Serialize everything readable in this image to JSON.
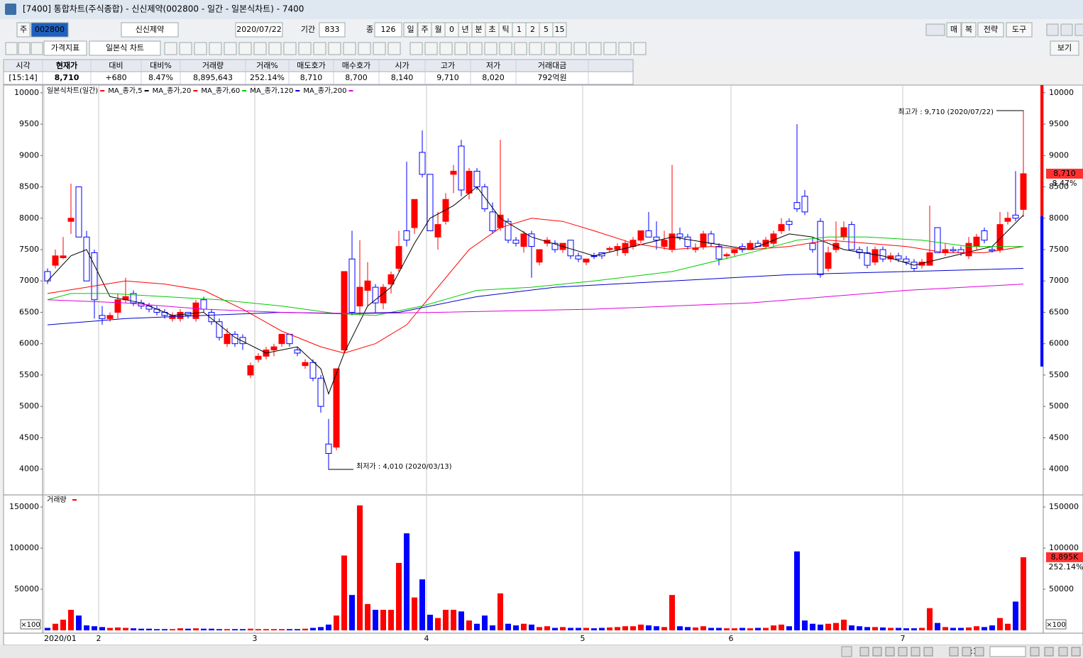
{
  "window": {
    "title": "[7400] 통합차트(주식종합) - 신신제약(002800 - 일간 - 일본식차트) - 7400"
  },
  "toolbar": {
    "row1": [
      "주",
      "002800",
      "신신제약",
      "2020/07/22",
      "기간",
      "833",
      "종",
      "126",
      "일",
      "주",
      "월",
      "0",
      "년",
      "분",
      "초",
      "틱",
      "1",
      "2",
      "5",
      "15"
    ],
    "row1_right": [
      "매",
      "복",
      "전략",
      "도구"
    ],
    "row2": [
      "가격지표",
      "일본식 차트"
    ],
    "row2_right": [
      "보기"
    ]
  },
  "quote": {
    "headers": [
      "시각",
      "현재가",
      "대비",
      "대비%",
      "거래량",
      "거래%",
      "매도호가",
      "매수호가",
      "시가",
      "고가",
      "저가",
      "거래대금"
    ],
    "values": [
      "[15:14]",
      "8,710",
      "+680",
      "8.47%",
      "8,895,643",
      "252.14%",
      "8,710",
      "8,700",
      "8,140",
      "9,710",
      "8,020",
      "792억원"
    ]
  },
  "chart_data": [
    {
      "type": "candlestick",
      "title": "일본식차트(일간)",
      "up_color": "#ff0000",
      "down_color": "#0000ff",
      "xticks": [
        {
          "value": 0,
          "label": "2020/01"
        },
        {
          "value": 7,
          "label": "2"
        },
        {
          "value": 27,
          "label": "3"
        },
        {
          "value": 49,
          "label": "4"
        },
        {
          "value": 69,
          "label": "5"
        },
        {
          "value": 88,
          "label": "6"
        },
        {
          "value": 110,
          "label": "7"
        }
      ],
      "ylim": [
        3600,
        10100
      ],
      "yticks": [
        4000,
        4500,
        5000,
        5500,
        6000,
        6500,
        7000,
        7500,
        8000,
        8500,
        9000,
        9500,
        10000
      ],
      "grid": true,
      "open": [
        7150,
        7250,
        7370,
        7950,
        8500,
        7700,
        7450,
        6450,
        6400,
        6500,
        6700,
        6800,
        6650,
        6600,
        6550,
        6500,
        6400,
        6400,
        6500,
        6400,
        6700,
        6500,
        6350,
        6000,
        6150,
        6100,
        5500,
        5750,
        5800,
        5900,
        6000,
        6150,
        5900,
        5650,
        5700,
        5450,
        4400,
        4350,
        5900,
        7350,
        6600,
        6850,
        6900,
        6650,
        6950,
        7200,
        7800,
        7850,
        9050,
        8700,
        7700,
        7950,
        8700,
        9150,
        8400,
        8750,
        8500,
        8100,
        7850,
        7950,
        7650,
        7550,
        7750,
        7300,
        7600,
        7600,
        7500,
        7650,
        7400,
        7300,
        7400,
        7450,
        7500,
        7500,
        7450,
        7550,
        7650,
        7800,
        7700,
        7550,
        7500,
        7750,
        7700,
        7500,
        7550,
        7750,
        7550,
        7400,
        7450,
        7550,
        7500,
        7600,
        7550,
        7600,
        7800,
        7950,
        8250,
        8350,
        7600,
        7950,
        7200,
        7500,
        7700,
        7900,
        7500,
        7450,
        7300,
        7500,
        7350,
        7400,
        7350,
        7300,
        7250,
        7250,
        7850,
        7450,
        7500,
        7500,
        7400,
        7550,
        7800,
        7500,
        7500,
        7950,
        8050,
        8140
      ],
      "high": [
        7200,
        7500,
        7700,
        8550,
        8500,
        7800,
        7500,
        6600,
        6500,
        6800,
        7050,
        6850,
        6700,
        6650,
        6600,
        6550,
        6500,
        6550,
        6500,
        6700,
        6750,
        6550,
        6400,
        6250,
        6200,
        6150,
        5700,
        5850,
        5950,
        6000,
        6150,
        6150,
        5950,
        5750,
        5750,
        5500,
        4800,
        5600,
        7150,
        7800,
        7650,
        7300,
        6950,
        6950,
        7150,
        7800,
        8900,
        8300,
        9400,
        8700,
        8100,
        8400,
        8850,
        9250,
        8800,
        8800,
        8550,
        8250,
        9250,
        8000,
        7700,
        7800,
        7800,
        7500,
        7700,
        7650,
        7600,
        7650,
        7450,
        7350,
        7450,
        7450,
        7550,
        7600,
        7650,
        7700,
        7800,
        8100,
        7950,
        7800,
        8850,
        7850,
        7750,
        7600,
        7800,
        7800,
        7600,
        7450,
        7500,
        7600,
        7650,
        7650,
        7700,
        7800,
        8000,
        8000,
        9500,
        8450,
        7700,
        8000,
        7550,
        7950,
        7950,
        7950,
        7550,
        7550,
        7550,
        7550,
        7450,
        7450,
        7400,
        7350,
        7350,
        8200,
        7850,
        7600,
        7550,
        7550,
        7700,
        7750,
        7850,
        7550,
        8100,
        8100,
        8750,
        9710
      ],
      "low": [
        6950,
        7200,
        7350,
        7750,
        7700,
        7000,
        6400,
        6300,
        6350,
        6400,
        6650,
        6600,
        6550,
        6500,
        6450,
        6400,
        6350,
        6350,
        6400,
        6350,
        6500,
        6300,
        6050,
        5950,
        5950,
        5900,
        5450,
        5700,
        5750,
        5800,
        5950,
        5950,
        5800,
        5600,
        5400,
        4900,
        4010,
        4300,
        5850,
        6450,
        6450,
        6600,
        6500,
        6550,
        6800,
        7150,
        7550,
        7750,
        8650,
        7800,
        7500,
        7900,
        8400,
        8350,
        8300,
        8450,
        8100,
        7750,
        7800,
        7600,
        7550,
        7450,
        7050,
        7250,
        7550,
        7450,
        7450,
        7350,
        7300,
        7250,
        7350,
        7350,
        7450,
        7400,
        7400,
        7500,
        7600,
        7750,
        7500,
        7500,
        7450,
        7650,
        7500,
        7450,
        7500,
        7550,
        7250,
        7350,
        7400,
        7450,
        7500,
        7550,
        7500,
        7550,
        7750,
        7800,
        8100,
        8050,
        7450,
        7050,
        7150,
        7450,
        7650,
        7500,
        7350,
        7200,
        7250,
        7300,
        7300,
        7300,
        7250,
        7150,
        7200,
        7250,
        7450,
        7400,
        7450,
        7400,
        7350,
        7500,
        7600,
        7450,
        7450,
        7900,
        7950,
        8020
      ],
      "close": [
        7000,
        7400,
        7400,
        8000,
        7700,
        7000,
        6700,
        6400,
        6450,
        6700,
        6750,
        6650,
        6600,
        6550,
        6500,
        6450,
        6450,
        6500,
        6450,
        6650,
        6550,
        6350,
        6100,
        6150,
        6000,
        6000,
        5650,
        5800,
        5900,
        5950,
        6150,
        6000,
        5850,
        5700,
        5450,
        5000,
        4250,
        5600,
        7150,
        6500,
        6900,
        7000,
        6650,
        6900,
        7100,
        7550,
        7650,
        8300,
        8700,
        7800,
        7900,
        8300,
        8750,
        8450,
        8750,
        8500,
        8150,
        7800,
        8050,
        7650,
        7600,
        7750,
        7550,
        7500,
        7650,
        7500,
        7600,
        7400,
        7350,
        7350,
        7400,
        7400,
        7520,
        7550,
        7600,
        7650,
        7800,
        7700,
        7650,
        7650,
        7750,
        7700,
        7550,
        7520,
        7750,
        7600,
        7350,
        7420,
        7500,
        7500,
        7600,
        7550,
        7650,
        7750,
        7900,
        7900,
        8150,
        8100,
        7500,
        7100,
        7450,
        7600,
        7850,
        7500,
        7450,
        7250,
        7500,
        7350,
        7400,
        7350,
        7300,
        7200,
        7300,
        7450,
        7450,
        7500,
        7480,
        7450,
        7600,
        7700,
        7650,
        7480,
        7900,
        8000,
        8000,
        8710
      ],
      "series": [
        {
          "name": "MA_종가,5",
          "color": "#000000",
          "x": [
            0,
            3,
            5,
            8,
            12,
            16,
            20,
            24,
            28,
            32,
            35,
            36,
            38,
            41,
            44,
            47,
            49,
            52,
            55,
            58,
            62,
            66,
            70,
            75,
            80,
            85,
            90,
            95,
            98,
            102,
            107,
            111,
            116,
            121,
            123,
            125
          ],
          "values": [
            7000,
            7400,
            7500,
            6750,
            6650,
            6450,
            6500,
            6100,
            5850,
            5950,
            5600,
            5200,
            5850,
            6600,
            6900,
            7600,
            8000,
            8200,
            8500,
            8000,
            7700,
            7550,
            7400,
            7550,
            7700,
            7600,
            7500,
            7750,
            7700,
            7500,
            7400,
            7250,
            7400,
            7550,
            7800,
            8050
          ]
        },
        {
          "name": "MA_종가,20",
          "color": "#ff0000",
          "x": [
            0,
            5,
            10,
            15,
            20,
            25,
            30,
            35,
            38,
            42,
            46,
            50,
            54,
            58,
            62,
            66,
            70,
            75,
            80,
            85,
            90,
            95,
            100,
            105,
            110,
            115,
            120,
            125
          ],
          "values": [
            6800,
            6900,
            7000,
            6950,
            6850,
            6550,
            6200,
            5950,
            5850,
            6000,
            6300,
            6900,
            7500,
            7850,
            8000,
            7950,
            7800,
            7600,
            7500,
            7550,
            7500,
            7550,
            7650,
            7600,
            7550,
            7450,
            7450,
            7550
          ]
        },
        {
          "name": "MA_종가,60",
          "color": "#00cc00",
          "x": [
            0,
            3,
            8,
            15,
            22,
            30,
            37,
            42,
            48,
            55,
            62,
            70,
            80,
            90,
            96,
            100,
            105,
            112,
            118,
            125
          ],
          "values": [
            6700,
            6800,
            6800,
            6750,
            6700,
            6600,
            6480,
            6450,
            6600,
            6850,
            6900,
            7000,
            7150,
            7450,
            7650,
            7700,
            7700,
            7650,
            7550,
            7550
          ]
        },
        {
          "name": "MA_종가,120",
          "color": "#0000cc",
          "x": [
            0,
            10,
            20,
            30,
            37,
            45,
            55,
            65,
            80,
            95,
            110,
            125
          ],
          "values": [
            6300,
            6400,
            6450,
            6500,
            6480,
            6500,
            6750,
            6900,
            7000,
            7100,
            7150,
            7200
          ]
        },
        {
          "name": "MA_종가,200",
          "color": "#dd00dd",
          "x": [
            0,
            10,
            20,
            30,
            40,
            50,
            70,
            90,
            110,
            125
          ],
          "values": [
            6700,
            6650,
            6550,
            6500,
            6480,
            6500,
            6550,
            6650,
            6850,
            6950
          ]
        }
      ],
      "annotations": [
        {
          "text": "최고가 : 9,710 (2020/07/22)",
          "color": "#ff0000"
        },
        {
          "text": "최저가 : 4,010 (2020/03/13)",
          "color": "#0000ff"
        }
      ],
      "last_label": "8,710",
      "last_change": "8.47%"
    },
    {
      "type": "bar",
      "title": "거래량",
      "unit": "×100",
      "ylim": [
        0,
        163000
      ],
      "yticks": [
        50000,
        100000,
        150000
      ],
      "values": [
        3000,
        8000,
        13000,
        25000,
        18000,
        6000,
        5000,
        4000,
        3000,
        3500,
        3000,
        2500,
        2000,
        2000,
        1500,
        1500,
        1500,
        2500,
        2000,
        2500,
        2000,
        2000,
        1500,
        1500,
        1500,
        1500,
        2000,
        1500,
        1500,
        1500,
        1500,
        1500,
        1500,
        2000,
        3000,
        4000,
        7000,
        18000,
        91000,
        43000,
        152000,
        32000,
        25000,
        25000,
        25000,
        82000,
        118000,
        40000,
        62000,
        19000,
        15000,
        25000,
        25000,
        23000,
        12000,
        8000,
        18000,
        6000,
        45000,
        8000,
        6000,
        8000,
        7000,
        4000,
        5000,
        3000,
        4000,
        3000,
        3000,
        3000,
        2500,
        3000,
        3500,
        4000,
        5000,
        5000,
        7000,
        6000,
        5000,
        4000,
        43000,
        5000,
        4000,
        3500,
        5000,
        3000,
        3000,
        2500,
        2500,
        3000,
        2500,
        3000,
        3000,
        6000,
        7000,
        5000,
        96000,
        12000,
        8000,
        7000,
        8000,
        9000,
        13000,
        6000,
        5000,
        4000,
        4000,
        3500,
        3000,
        3000,
        2500,
        2500,
        3000,
        27000,
        9000,
        4000,
        3000,
        3000,
        3500,
        5000,
        4000,
        6000,
        15000,
        8000,
        35000,
        88956
      ],
      "last_label": "8,895K",
      "last_ratio": "252.14%"
    }
  ],
  "bottom_bar": {
    "zoom": "1:1"
  }
}
